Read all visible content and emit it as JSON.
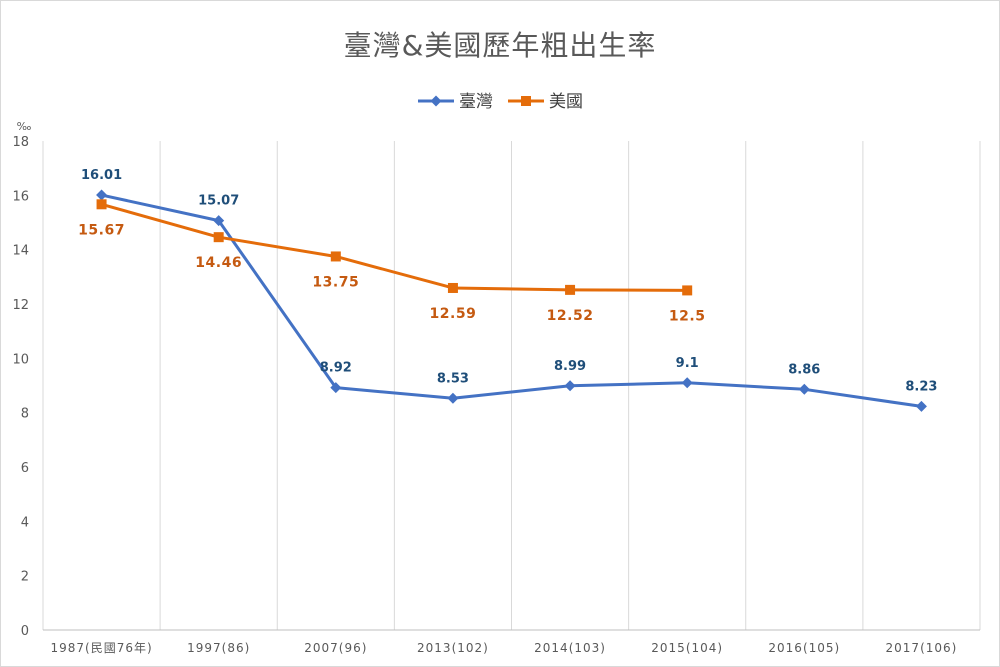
{
  "chart_data": {
    "type": "line",
    "title": "臺灣&美國歷年粗出生率",
    "ylabel": "‰",
    "xlabel": "",
    "ylim": [
      0,
      18
    ],
    "y_ticks": [
      0,
      2,
      4,
      6,
      8,
      10,
      12,
      14,
      16,
      18
    ],
    "categories": [
      "1987(民國76年)",
      "1997(86)",
      "2007(96)",
      "2013(102)",
      "2014(103)",
      "2015(104)",
      "2016(105)",
      "2017(106)"
    ],
    "legend_position": "top-center",
    "grid": "vertical",
    "series": [
      {
        "name": "臺灣",
        "color": "#4472c4",
        "label_color": "#1f4e79",
        "marker": "diamond",
        "values": [
          16.01,
          15.07,
          8.92,
          8.53,
          8.99,
          9.1,
          8.86,
          8.23
        ],
        "labels": [
          "16.01",
          "15.07",
          "8.92",
          "8.53",
          "8.99",
          "9.1",
          "8.86",
          "8.23"
        ]
      },
      {
        "name": "美國",
        "color": "#e46c0a",
        "label_color": "#c55a11",
        "marker": "square",
        "values": [
          15.67,
          14.46,
          13.75,
          12.59,
          12.52,
          12.5,
          null,
          null
        ],
        "labels": [
          "15.67",
          "14.46",
          "13.75",
          "12.59",
          "12.52",
          "12.5",
          null,
          null
        ]
      }
    ]
  }
}
